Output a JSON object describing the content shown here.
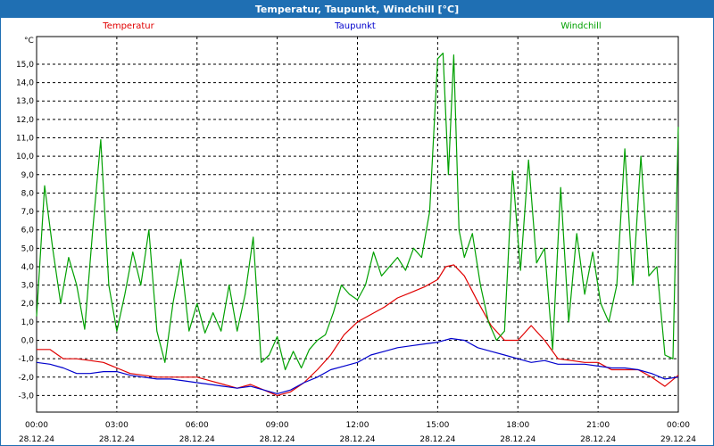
{
  "window": {
    "title": "Temperatur, Taupunkt, Windchill [°C]"
  },
  "chart_data": {
    "type": "line",
    "title": "Temperatur, Taupunkt, Windchill [°C]",
    "ylabel": "°C",
    "ylim": [
      -3.9,
      16.5
    ],
    "y_ticks": [
      "-3,0",
      "-2,0",
      "-1,0",
      "0,0",
      "1,0",
      "2,0",
      "3,0",
      "4,0",
      "5,0",
      "6,0",
      "7,0",
      "8,0",
      "9,0",
      "10,0",
      "11,0",
      "12,0",
      "13,0",
      "14,0",
      "15,0"
    ],
    "xlim": [
      0,
      24
    ],
    "x_ticks": [
      {
        "time": "00:00",
        "date": "28.12.24"
      },
      {
        "time": "03:00",
        "date": "28.12.24"
      },
      {
        "time": "06:00",
        "date": "28.12.24"
      },
      {
        "time": "09:00",
        "date": "28.12.24"
      },
      {
        "time": "12:00",
        "date": "28.12.24"
      },
      {
        "time": "15:00",
        "date": "28.12.24"
      },
      {
        "time": "18:00",
        "date": "28.12.24"
      },
      {
        "time": "21:00",
        "date": "28.12.24"
      },
      {
        "time": "00:00",
        "date": "29.12.24"
      }
    ],
    "grid": true,
    "legend_position": "top",
    "series": [
      {
        "name": "Temperatur",
        "color": "#e00000",
        "x": [
          0,
          0.5,
          1,
          1.5,
          2,
          2.5,
          3,
          3.5,
          4,
          4.5,
          5,
          5.5,
          6,
          6.5,
          7,
          7.5,
          8,
          8.5,
          9,
          9.5,
          10,
          10.5,
          11,
          11.5,
          12,
          12.5,
          13,
          13.5,
          14,
          14.5,
          15,
          15.3,
          15.6,
          16,
          16.5,
          17,
          17.5,
          18,
          18.5,
          19,
          19.5,
          20,
          20.5,
          21,
          21.5,
          22,
          22.5,
          23,
          23.5,
          24
        ],
        "values": [
          -0.5,
          -0.5,
          -1.0,
          -1.0,
          -1.1,
          -1.2,
          -1.5,
          -1.8,
          -1.9,
          -2.0,
          -2.0,
          -2.0,
          -2.0,
          -2.2,
          -2.4,
          -2.6,
          -2.4,
          -2.7,
          -3.0,
          -2.8,
          -2.3,
          -1.6,
          -0.8,
          0.3,
          1.0,
          1.4,
          1.8,
          2.3,
          2.6,
          2.9,
          3.3,
          4.0,
          4.1,
          3.5,
          2.1,
          0.8,
          0.0,
          0.0,
          0.8,
          0.0,
          -1.0,
          -1.1,
          -1.2,
          -1.2,
          -1.6,
          -1.6,
          -1.6,
          -2.0,
          -2.5,
          -1.9
        ]
      },
      {
        "name": "Taupunkt",
        "color": "#0000cc",
        "x": [
          0,
          0.5,
          1,
          1.5,
          2,
          2.5,
          3,
          3.5,
          4,
          4.5,
          5,
          5.5,
          6,
          6.5,
          7,
          7.5,
          8,
          8.5,
          9,
          9.5,
          10,
          10.5,
          11,
          11.5,
          12,
          12.5,
          13,
          13.5,
          14,
          14.5,
          15,
          15.5,
          16,
          16.5,
          17,
          17.5,
          18,
          18.5,
          19,
          19.5,
          20,
          20.5,
          21,
          21.5,
          22,
          22.5,
          23,
          23.5,
          24
        ],
        "values": [
          -1.2,
          -1.3,
          -1.5,
          -1.8,
          -1.8,
          -1.7,
          -1.7,
          -1.9,
          -2.0,
          -2.1,
          -2.1,
          -2.2,
          -2.3,
          -2.4,
          -2.5,
          -2.6,
          -2.5,
          -2.7,
          -2.9,
          -2.7,
          -2.3,
          -2.0,
          -1.6,
          -1.4,
          -1.2,
          -0.8,
          -0.6,
          -0.4,
          -0.3,
          -0.2,
          -0.1,
          0.1,
          0.0,
          -0.4,
          -0.6,
          -0.8,
          -1.0,
          -1.2,
          -1.1,
          -1.3,
          -1.3,
          -1.3,
          -1.4,
          -1.5,
          -1.5,
          -1.6,
          -1.8,
          -2.1,
          -2.0
        ]
      },
      {
        "name": "Windchill",
        "color": "#00a000",
        "x": [
          0,
          0.3,
          0.6,
          0.9,
          1.2,
          1.5,
          1.8,
          2.1,
          2.4,
          2.7,
          3.0,
          3.3,
          3.6,
          3.9,
          4.2,
          4.5,
          4.8,
          5.1,
          5.4,
          5.7,
          6.0,
          6.3,
          6.6,
          6.9,
          7.2,
          7.5,
          7.8,
          8.1,
          8.4,
          8.7,
          9.0,
          9.3,
          9.6,
          9.9,
          10.2,
          10.5,
          10.8,
          11.1,
          11.4,
          11.7,
          12.0,
          12.3,
          12.6,
          12.9,
          13.2,
          13.5,
          13.8,
          14.1,
          14.4,
          14.7,
          15.0,
          15.2,
          15.4,
          15.6,
          15.8,
          16.0,
          16.3,
          16.6,
          16.9,
          17.2,
          17.5,
          17.8,
          18.1,
          18.4,
          18.7,
          19.0,
          19.3,
          19.6,
          19.9,
          20.2,
          20.5,
          20.8,
          21.1,
          21.4,
          21.7,
          22.0,
          22.3,
          22.6,
          22.9,
          23.2,
          23.5,
          23.8,
          24.0
        ],
        "values": [
          1.3,
          8.4,
          5.0,
          2.0,
          4.5,
          3.0,
          0.6,
          6.0,
          10.9,
          3.0,
          0.5,
          2.5,
          4.8,
          3.0,
          6.0,
          0.5,
          -1.2,
          2.0,
          4.4,
          0.5,
          2.0,
          0.4,
          1.5,
          0.5,
          3.0,
          0.5,
          2.5,
          5.6,
          -1.2,
          -0.8,
          0.2,
          -1.6,
          -0.6,
          -1.5,
          -0.5,
          0.0,
          0.3,
          1.5,
          3.0,
          2.5,
          2.2,
          3.0,
          4.8,
          3.5,
          4.0,
          4.5,
          3.8,
          5.0,
          4.5,
          7.0,
          15.3,
          15.6,
          9.0,
          15.5,
          6.0,
          4.5,
          5.8,
          3.0,
          1.0,
          0.0,
          0.5,
          9.2,
          3.8,
          9.8,
          4.2,
          5.0,
          -0.5,
          8.3,
          1.0,
          5.8,
          2.5,
          4.8,
          2.0,
          1.0,
          3.0,
          10.4,
          3.0,
          10.0,
          3.5,
          4.0,
          -0.8,
          -1.0,
          11.6
        ]
      }
    ]
  }
}
